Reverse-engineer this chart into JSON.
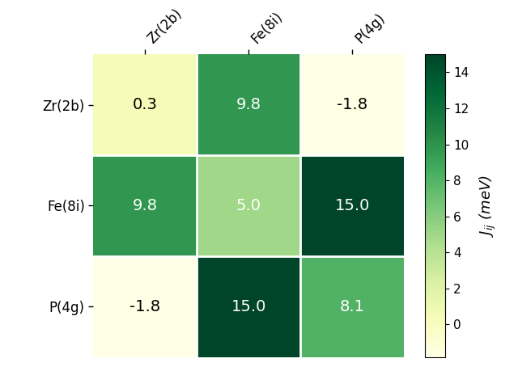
{
  "labels": [
    "Zr(2b)",
    "Fe(8i)",
    "P(4g)"
  ],
  "matrix": [
    [
      0.3,
      9.8,
      -1.8
    ],
    [
      9.8,
      5.0,
      15.0
    ],
    [
      -1.8,
      15.0,
      8.1
    ]
  ],
  "vmin": -1.8,
  "vmax": 15.0,
  "cmap": "YlGn",
  "colorbar_label": "$J_{ij}$ (meV)",
  "colorbar_ticks": [
    0,
    2,
    4,
    6,
    8,
    10,
    12,
    14
  ],
  "text_color_dark": "white",
  "text_color_light": "black",
  "fontsize_annot": 14,
  "fontsize_ticks": 12,
  "fontsize_cbar": 13,
  "background_color": "white"
}
